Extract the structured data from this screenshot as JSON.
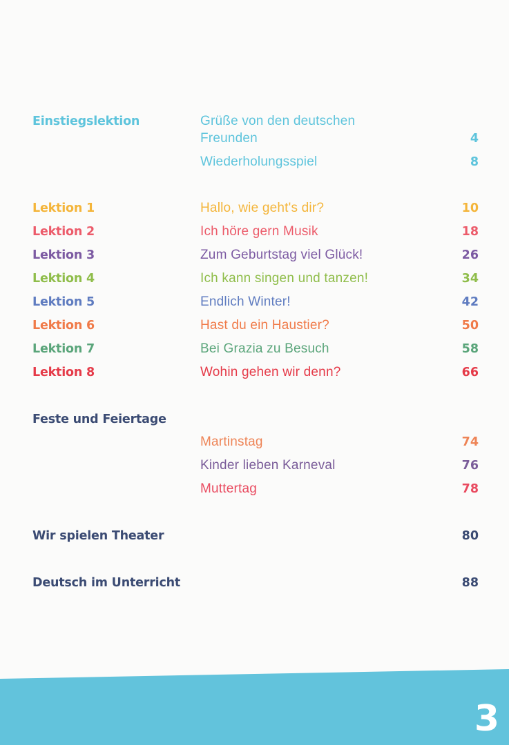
{
  "intro": {
    "label": "Einstiegslektion",
    "items": [
      {
        "title_line1": "Grüße von den deutschen",
        "title_line2": "Freunden",
        "page": "4"
      },
      {
        "title": "Wiederholungsspiel",
        "page": "8"
      }
    ]
  },
  "lessons": [
    {
      "label": "Lektion 1",
      "title": "Hallo, wie geht's dir?",
      "page": "10"
    },
    {
      "label": "Lektion 2",
      "title": "Ich höre gern Musik",
      "page": "18"
    },
    {
      "label": "Lektion 3",
      "title": "Zum Geburtstag viel Glück!",
      "page": "26"
    },
    {
      "label": "Lektion 4",
      "title": "Ich kann singen und tanzen!",
      "page": "34"
    },
    {
      "label": "Lektion 5",
      "title": "Endlich Winter!",
      "page": "42"
    },
    {
      "label": "Lektion 6",
      "title": "Hast du ein Haustier?",
      "page": "50"
    },
    {
      "label": "Lektion 7",
      "title": "Bei Grazia zu Besuch",
      "page": "58"
    },
    {
      "label": "Lektion 8",
      "title": "Wohin gehen wir denn?",
      "page": "66"
    }
  ],
  "festivals": {
    "label": "Feste und Feiertage",
    "items": [
      {
        "title": "Martinstag",
        "page": "74"
      },
      {
        "title": "Kinder lieben Karneval",
        "page": "76"
      },
      {
        "title": "Muttertag",
        "page": "78"
      }
    ]
  },
  "theater": {
    "label": "Wir spielen Theater",
    "page": "80"
  },
  "classroom": {
    "label": "Deutsch im Unterricht",
    "page": "88"
  },
  "footer": {
    "page_number": "3"
  },
  "colors": {
    "intro": "#5ec4dc",
    "lesson1": "#f4b53a",
    "lesson2": "#ec5b6a",
    "lesson3": "#7c5aa2",
    "lesson4": "#8fbd4a",
    "lesson5": "#5f7cc0",
    "lesson6": "#f07a48",
    "lesson7": "#5aa57a",
    "lesson8": "#e53a48",
    "dark_section": "#3b4b73",
    "footer_band": "#62c3dc"
  }
}
